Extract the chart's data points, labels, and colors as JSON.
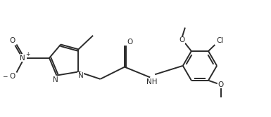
{
  "bg_color": "#ffffff",
  "line_color": "#2a2a2a",
  "line_width": 1.4,
  "font_size": 7.5,
  "figsize": [
    3.85,
    1.67
  ],
  "dpi": 100,
  "xlim": [
    0,
    11
  ],
  "ylim": [
    0,
    4.8
  ]
}
